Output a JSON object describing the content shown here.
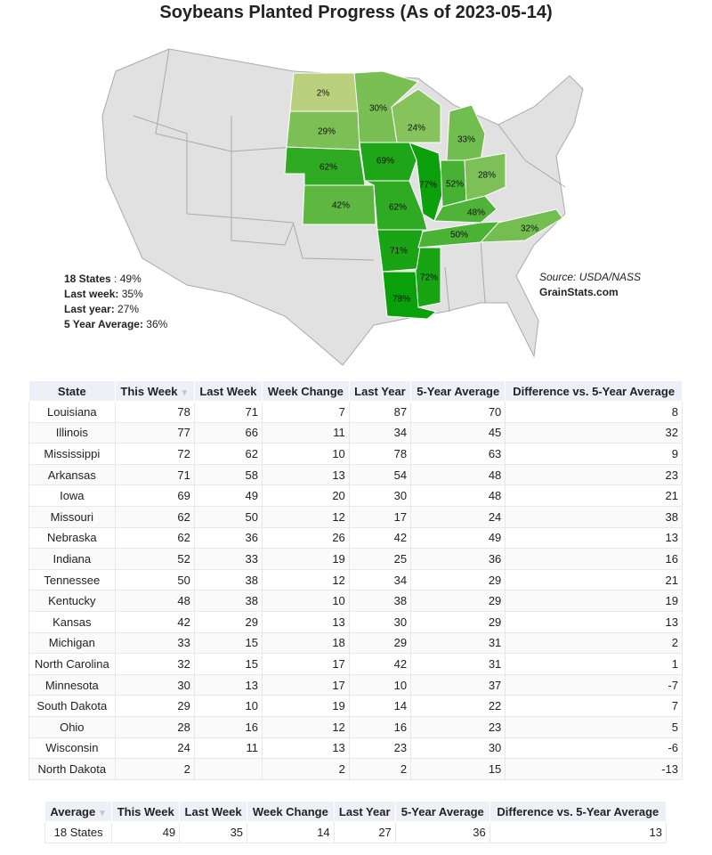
{
  "title": "Soybeans Planted Progress (As of 2023-05-14)",
  "map": {
    "values": [
      78,
      77,
      72,
      71,
      69,
      62,
      62,
      52,
      50,
      48,
      42,
      33,
      32,
      30,
      29,
      28,
      24,
      2
    ],
    "value_labels": [
      "78%",
      "77%",
      "72%",
      "71%",
      "69%",
      "62%",
      "62%",
      "52%",
      "50%",
      "48%",
      "42%",
      "33%",
      "32%",
      "30%",
      "29%",
      "28%",
      "24%",
      "2%"
    ],
    "summary": [
      {
        "label": "18 States",
        "text": ": 49%"
      },
      {
        "label": "Last week:",
        "text": "35%"
      },
      {
        "label": "Last year:",
        "text": "27%"
      },
      {
        "label": "5 Year Average:",
        "text": "36%"
      }
    ],
    "source": "Source: USDA/NASS",
    "site": "GrainStats.com"
  },
  "table": {
    "columns": [
      "State",
      "This Week",
      "Last Week",
      "Week Change",
      "Last Year",
      "5-Year Average",
      "Difference vs. 5-Year Average"
    ],
    "rows": [
      [
        "Louisiana",
        78,
        71,
        7,
        87,
        70,
        8
      ],
      [
        "Illinois",
        77,
        66,
        11,
        34,
        45,
        32
      ],
      [
        "Mississippi",
        72,
        62,
        10,
        78,
        63,
        9
      ],
      [
        "Arkansas",
        71,
        58,
        13,
        54,
        48,
        23
      ],
      [
        "Iowa",
        69,
        49,
        20,
        30,
        48,
        21
      ],
      [
        "Missouri",
        62,
        50,
        12,
        17,
        24,
        38
      ],
      [
        "Nebraska",
        62,
        36,
        26,
        42,
        49,
        13
      ],
      [
        "Indiana",
        52,
        33,
        19,
        25,
        36,
        16
      ],
      [
        "Tennessee",
        50,
        38,
        12,
        34,
        29,
        21
      ],
      [
        "Kentucky",
        48,
        38,
        10,
        38,
        29,
        19
      ],
      [
        "Kansas",
        42,
        29,
        13,
        30,
        29,
        13
      ],
      [
        "Michigan",
        33,
        15,
        18,
        29,
        31,
        2
      ],
      [
        "North Carolina",
        32,
        15,
        17,
        42,
        31,
        1
      ],
      [
        "Minnesota",
        30,
        13,
        17,
        10,
        37,
        -7
      ],
      [
        "South Dakota",
        29,
        10,
        19,
        14,
        22,
        7
      ],
      [
        "Ohio",
        28,
        16,
        12,
        16,
        23,
        5
      ],
      [
        "Wisconsin",
        24,
        11,
        13,
        23,
        30,
        -6
      ],
      [
        "North Dakota",
        2,
        null,
        2,
        2,
        15,
        -13
      ]
    ]
  },
  "summary_table": {
    "columns": [
      "Average",
      "This Week",
      "Last Week",
      "Week Change",
      "Last Year",
      "5-Year Average",
      "Difference vs. 5-Year Average"
    ],
    "rows": [
      [
        "18 States",
        49,
        35,
        14,
        27,
        36,
        13
      ]
    ]
  }
}
